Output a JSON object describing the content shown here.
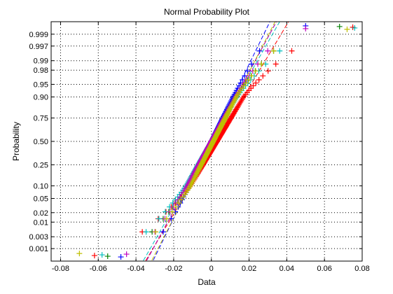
{
  "chart_data": {
    "type": "scatter",
    "title": "Normal Probability Plot",
    "xlabel": "Data",
    "ylabel": "Probability",
    "xlim": [
      -0.085,
      0.08
    ],
    "x_ticks": [
      -0.08,
      -0.06,
      -0.04,
      -0.02,
      0,
      0.02,
      0.04,
      0.06,
      0.08
    ],
    "x_tick_labels": [
      "-0.08",
      "-0.06",
      "-0.04",
      "-0.02",
      "0",
      "0.02",
      "0.04",
      "0.06",
      "0.08"
    ],
    "y_ticks": [
      0.001,
      0.003,
      0.01,
      0.02,
      0.05,
      0.1,
      0.25,
      0.5,
      0.75,
      0.9,
      0.95,
      0.98,
      0.99,
      0.997,
      0.999
    ],
    "y_tick_labels": [
      "0.001",
      "0.003",
      "0.01",
      "0.02",
      "0.05",
      "0.10",
      "0.25",
      "0.50",
      "0.75",
      "0.90",
      "0.95",
      "0.98",
      "0.99",
      "0.997",
      "0.999"
    ],
    "grid": true,
    "marker": "+",
    "series": [
      {
        "color": "#0000ff",
        "mean": 0.0,
        "sd": 0.009,
        "min": -0.048,
        "max": 0.05,
        "low_spread": 1.05,
        "high_spread": 1.05,
        "n": 120
      },
      {
        "color": "#008000",
        "mean": 0.0,
        "sd": 0.01,
        "min": -0.055,
        "max": 0.068,
        "low_spread": 1.25,
        "high_spread": 1.35,
        "n": 120
      },
      {
        "color": "#ff0000",
        "mean": 0.003,
        "sd": 0.011,
        "min": -0.062,
        "max": 0.075,
        "low_spread": 1.55,
        "high_spread": 1.55,
        "n": 120
      },
      {
        "color": "#00bfbf",
        "mean": 0.0,
        "sd": 0.0105,
        "min": -0.058,
        "max": 0.076,
        "low_spread": 1.35,
        "high_spread": 1.45,
        "n": 120
      },
      {
        "color": "#bf00bf",
        "mean": 0.0,
        "sd": 0.01,
        "min": -0.045,
        "max": 0.05,
        "low_spread": 1.15,
        "high_spread": 1.15,
        "n": 120
      },
      {
        "color": "#bfbf00",
        "mean": 0.001,
        "sd": 0.0095,
        "min": -0.07,
        "max": 0.072,
        "low_spread": 1.3,
        "high_spread": 1.4,
        "n": 120
      }
    ]
  }
}
